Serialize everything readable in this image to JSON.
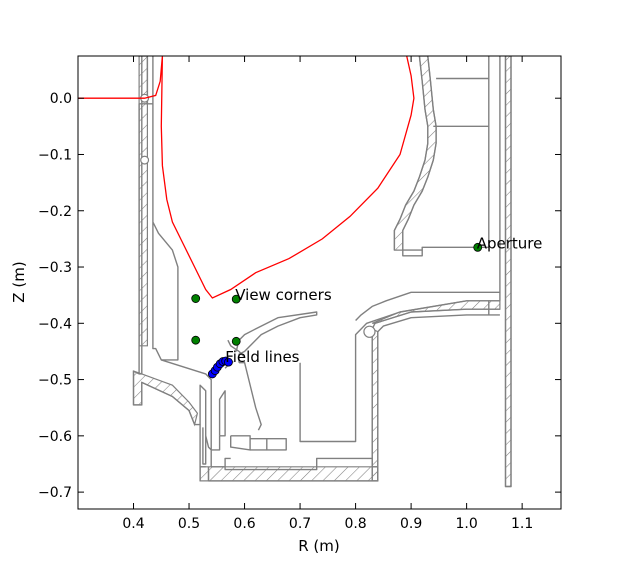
{
  "chart_data": {
    "type": "scatter",
    "title": "",
    "xlabel": "R (m)",
    "ylabel": "Z (m)",
    "xlim": [
      0.3,
      1.17
    ],
    "ylim": [
      -0.73,
      0.075
    ],
    "xticks": [
      0.4,
      0.5,
      0.6,
      0.7,
      0.8,
      0.9,
      1.0,
      1.1
    ],
    "xtick_labels": [
      "0.4",
      "0.5",
      "0.6",
      "0.7",
      "0.8",
      "0.9",
      "1.0",
      "1.1"
    ],
    "yticks": [
      0.0,
      -0.1,
      -0.2,
      -0.3,
      -0.4,
      -0.5,
      -0.6,
      -0.7
    ],
    "ytick_labels": [
      "0.0",
      "−0.1",
      "−0.2",
      "−0.3",
      "−0.4",
      "−0.5",
      "−0.6",
      "−0.7"
    ],
    "grid": false,
    "colors": {
      "separatrix": "#ff0000",
      "wall": "#808080",
      "view_corners": "#008000",
      "aperture": "#008000",
      "field_lines": "#0000ff"
    },
    "separatrix": [
      [
        0.3,
        0.0
      ],
      [
        0.42,
        0.0
      ],
      [
        0.44,
        0.005
      ],
      [
        0.448,
        0.03
      ],
      [
        0.452,
        0.075
      ],
      [
        0.45,
        -0.05
      ],
      [
        0.452,
        -0.12
      ],
      [
        0.46,
        -0.18
      ],
      [
        0.47,
        -0.22
      ],
      [
        0.49,
        -0.26
      ],
      [
        0.51,
        -0.3
      ],
      [
        0.53,
        -0.34
      ],
      [
        0.542,
        -0.355
      ],
      [
        0.575,
        -0.34
      ],
      [
        0.62,
        -0.31
      ],
      [
        0.68,
        -0.285
      ],
      [
        0.74,
        -0.25
      ],
      [
        0.79,
        -0.21
      ],
      [
        0.84,
        -0.16
      ],
      [
        0.88,
        -0.1
      ],
      [
        0.9,
        -0.03
      ],
      [
        0.905,
        0.0
      ],
      [
        0.9,
        0.04
      ],
      [
        0.892,
        0.075
      ]
    ],
    "view_corners": [
      [
        0.512,
        -0.356
      ],
      [
        0.585,
        -0.357
      ],
      [
        0.512,
        -0.43
      ],
      [
        0.585,
        -0.432
      ]
    ],
    "aperture": [
      [
        1.02,
        -0.265
      ]
    ],
    "field_lines": [
      [
        0.542,
        -0.49
      ],
      [
        0.547,
        -0.484
      ],
      [
        0.551,
        -0.478
      ],
      [
        0.556,
        -0.472
      ],
      [
        0.561,
        -0.468
      ],
      [
        0.566,
        -0.467
      ],
      [
        0.571,
        -0.469
      ]
    ],
    "annotations": [
      {
        "text": "View corners",
        "x": 0.585,
        "y": -0.357
      },
      {
        "text": "Field lines",
        "x": 0.567,
        "y": -0.467
      },
      {
        "text": "Aperture",
        "x": 1.02,
        "y": -0.265
      }
    ],
    "wall_outline": [
      [
        [
          0.425,
          0.075
        ],
        [
          0.425,
          -0.01
        ],
        [
          0.435,
          -0.01
        ],
        [
          0.435,
          -0.22
        ],
        [
          0.445,
          -0.24
        ],
        [
          0.47,
          -0.27
        ],
        [
          0.48,
          -0.3
        ],
        [
          0.48,
          -0.465
        ],
        [
          0.45,
          -0.465
        ],
        [
          0.44,
          -0.445
        ],
        [
          0.435,
          -0.445
        ],
        [
          0.435,
          0.075
        ]
      ],
      [
        [
          0.425,
          -0.01
        ],
        [
          0.41,
          -0.01
        ],
        [
          0.41,
          -0.49
        ],
        [
          0.415,
          -0.49
        ],
        [
          0.415,
          0.075
        ]
      ],
      [
        [
          0.41,
          -0.49
        ],
        [
          0.4,
          -0.485
        ],
        [
          0.4,
          -0.545
        ],
        [
          0.415,
          -0.545
        ],
        [
          0.415,
          -0.505
        ],
        [
          0.47,
          -0.53
        ],
        [
          0.5,
          -0.555
        ],
        [
          0.51,
          -0.58
        ],
        [
          0.52,
          -0.58
        ],
        [
          0.52,
          -0.51
        ],
        [
          0.53,
          -0.52
        ],
        [
          0.53,
          -0.6
        ],
        [
          0.535,
          -0.62
        ],
        [
          0.54,
          -0.625
        ],
        [
          0.54,
          -0.5
        ],
        [
          0.53,
          -0.49
        ],
        [
          0.45,
          -0.465
        ]
      ],
      [
        [
          0.53,
          -0.6
        ],
        [
          0.53,
          -0.65
        ],
        [
          0.525,
          -0.65
        ],
        [
          0.525,
          -0.585
        ]
      ],
      [
        [
          0.555,
          -0.6
        ],
        [
          0.555,
          -0.535
        ],
        [
          0.565,
          -0.52
        ],
        [
          0.565,
          -0.6
        ],
        [
          0.555,
          -0.6
        ]
      ],
      [
        [
          0.54,
          -0.625
        ],
        [
          0.555,
          -0.625
        ],
        [
          0.555,
          -0.6
        ]
      ],
      [
        [
          0.54,
          -0.625
        ],
        [
          0.54,
          -0.655
        ],
        [
          0.565,
          -0.655
        ]
      ],
      [
        [
          0.52,
          -0.58
        ],
        [
          0.52,
          -0.655
        ],
        [
          0.53,
          -0.655
        ]
      ],
      [
        [
          0.575,
          -0.6
        ],
        [
          0.575,
          -0.62
        ],
        [
          0.61,
          -0.625
        ],
        [
          0.61,
          -0.6
        ],
        [
          0.575,
          -0.6
        ]
      ],
      [
        [
          0.61,
          -0.605
        ],
        [
          0.64,
          -0.605
        ],
        [
          0.64,
          -0.625
        ],
        [
          0.61,
          -0.625
        ]
      ],
      [
        [
          0.64,
          -0.605
        ],
        [
          0.675,
          -0.605
        ],
        [
          0.675,
          -0.625
        ],
        [
          0.64,
          -0.625
        ]
      ],
      [
        [
          0.57,
          -0.43
        ],
        [
          0.575,
          -0.44
        ],
        [
          0.59,
          -0.45
        ],
        [
          0.6,
          -0.46
        ]
      ],
      [
        [
          0.565,
          -0.48
        ],
        [
          0.575,
          -0.47
        ],
        [
          0.58,
          -0.468
        ]
      ],
      [
        [
          0.535,
          -0.655
        ],
        [
          0.535,
          -0.68
        ],
        [
          0.84,
          -0.68
        ],
        [
          0.84,
          -0.655
        ],
        [
          0.83,
          -0.655
        ],
        [
          0.83,
          -0.64
        ],
        [
          0.73,
          -0.64
        ],
        [
          0.73,
          -0.66
        ],
        [
          0.565,
          -0.66
        ],
        [
          0.565,
          -0.64
        ],
        [
          0.575,
          -0.64
        ]
      ],
      [
        [
          0.52,
          -0.68
        ],
        [
          0.52,
          -0.655
        ]
      ],
      [
        [
          0.59,
          -0.47
        ],
        [
          0.6,
          -0.47
        ],
        [
          0.62,
          -0.55
        ],
        [
          0.63,
          -0.58
        ],
        [
          0.625,
          -0.59
        ]
      ],
      [
        [
          0.59,
          -0.47
        ],
        [
          0.59,
          -0.455
        ],
        [
          0.6,
          -0.45
        ],
        [
          0.615,
          -0.435
        ],
        [
          0.63,
          -0.42
        ],
        [
          0.66,
          -0.405
        ],
        [
          0.7,
          -0.39
        ],
        [
          0.73,
          -0.385
        ],
        [
          0.73,
          -0.38
        ],
        [
          0.66,
          -0.39
        ],
        [
          0.62,
          -0.41
        ],
        [
          0.6,
          -0.42
        ],
        [
          0.59,
          -0.43
        ],
        [
          0.585,
          -0.45
        ]
      ],
      [
        [
          0.7,
          -0.47
        ],
        [
          0.7,
          -0.61
        ],
        [
          0.8,
          -0.61
        ],
        [
          0.8,
          -0.42
        ],
        [
          0.82,
          -0.4
        ],
        [
          0.88,
          -0.38
        ],
        [
          1.0,
          -0.36
        ],
        [
          1.06,
          -0.36
        ],
        [
          1.06,
          -0.345
        ],
        [
          0.9,
          -0.345
        ],
        [
          0.855,
          -0.36
        ],
        [
          0.83,
          -0.37
        ],
        [
          0.81,
          -0.385
        ],
        [
          0.8,
          -0.395
        ]
      ],
      [
        [
          0.83,
          -0.68
        ],
        [
          0.83,
          -0.41
        ],
        [
          0.835,
          -0.4
        ],
        [
          0.9,
          -0.38
        ],
        [
          1.0,
          -0.375
        ],
        [
          1.06,
          -0.375
        ]
      ],
      [
        [
          0.84,
          -0.68
        ],
        [
          0.84,
          -0.415
        ],
        [
          0.85,
          -0.405
        ],
        [
          0.9,
          -0.39
        ],
        [
          1.0,
          -0.385
        ],
        [
          1.06,
          -0.385
        ]
      ],
      [
        [
          0.87,
          -0.27
        ],
        [
          0.87,
          -0.235
        ],
        [
          0.88,
          -0.215
        ],
        [
          0.89,
          -0.19
        ],
        [
          0.905,
          -0.165
        ],
        [
          0.915,
          -0.14
        ],
        [
          0.925,
          -0.11
        ],
        [
          0.93,
          -0.08
        ],
        [
          0.93,
          -0.05
        ],
        [
          0.925,
          -0.02
        ],
        [
          0.92,
          0.03
        ],
        [
          0.915,
          0.075
        ]
      ],
      [
        [
          0.885,
          -0.27
        ],
        [
          0.885,
          -0.235
        ],
        [
          0.895,
          -0.215
        ],
        [
          0.905,
          -0.19
        ],
        [
          0.92,
          -0.165
        ],
        [
          0.93,
          -0.14
        ],
        [
          0.94,
          -0.11
        ],
        [
          0.945,
          -0.08
        ],
        [
          0.945,
          -0.05
        ],
        [
          0.94,
          -0.02
        ],
        [
          0.935,
          0.03
        ],
        [
          0.93,
          0.075
        ]
      ],
      [
        [
          0.885,
          -0.27
        ],
        [
          0.92,
          -0.27
        ],
        [
          0.92,
          -0.265
        ],
        [
          1.04,
          -0.265
        ],
        [
          1.04,
          0.075
        ]
      ],
      [
        [
          0.94,
          -0.05
        ],
        [
          1.04,
          -0.05
        ]
      ],
      [
        [
          0.945,
          0.035
        ],
        [
          1.04,
          0.035
        ]
      ],
      [
        [
          1.07,
          0.075
        ],
        [
          1.07,
          -0.69
        ],
        [
          1.08,
          -0.69
        ],
        [
          1.08,
          0.075
        ]
      ],
      [
        [
          1.06,
          -0.345
        ],
        [
          1.06,
          0.075
        ]
      ],
      [
        [
          1.04,
          -0.36
        ],
        [
          1.04,
          -0.385
        ]
      ],
      [
        [
          0.92,
          -0.27
        ],
        [
          0.92,
          -0.28
        ],
        [
          0.885,
          -0.28
        ],
        [
          0.885,
          -0.27
        ]
      ]
    ],
    "hatched_regions": [
      [
        [
          0.41,
          0.075
        ],
        [
          0.425,
          0.075
        ],
        [
          0.425,
          -0.44
        ],
        [
          0.41,
          -0.44
        ]
      ],
      [
        [
          0.4,
          -0.485
        ],
        [
          0.415,
          -0.49
        ],
        [
          0.47,
          -0.51
        ],
        [
          0.5,
          -0.54
        ],
        [
          0.515,
          -0.56
        ],
        [
          0.51,
          -0.58
        ],
        [
          0.5,
          -0.555
        ],
        [
          0.47,
          -0.53
        ],
        [
          0.415,
          -0.505
        ],
        [
          0.415,
          -0.545
        ],
        [
          0.4,
          -0.545
        ]
      ],
      [
        [
          0.52,
          -0.655
        ],
        [
          0.535,
          -0.655
        ],
        [
          0.535,
          -0.68
        ],
        [
          0.84,
          -0.68
        ],
        [
          0.84,
          -0.655
        ],
        [
          0.535,
          -0.655
        ],
        [
          0.535,
          -0.68
        ],
        [
          0.52,
          -0.68
        ]
      ],
      [
        [
          0.83,
          -0.41
        ],
        [
          0.84,
          -0.415
        ],
        [
          0.84,
          -0.68
        ],
        [
          0.83,
          -0.68
        ]
      ],
      [
        [
          0.835,
          -0.4
        ],
        [
          0.9,
          -0.38
        ],
        [
          1.0,
          -0.375
        ],
        [
          1.06,
          -0.375
        ],
        [
          1.06,
          -0.36
        ],
        [
          1.0,
          -0.36
        ],
        [
          0.88,
          -0.38
        ],
        [
          0.83,
          -0.4
        ]
      ],
      [
        [
          1.07,
          0.075
        ],
        [
          1.08,
          0.075
        ],
        [
          1.08,
          -0.69
        ],
        [
          1.07,
          -0.69
        ]
      ],
      [
        [
          0.87,
          -0.27
        ],
        [
          0.885,
          -0.27
        ],
        [
          0.885,
          -0.235
        ],
        [
          0.895,
          -0.215
        ],
        [
          0.905,
          -0.19
        ],
        [
          0.92,
          -0.165
        ],
        [
          0.93,
          -0.14
        ],
        [
          0.94,
          -0.11
        ],
        [
          0.945,
          -0.08
        ],
        [
          0.945,
          -0.05
        ],
        [
          0.94,
          -0.02
        ],
        [
          0.935,
          0.03
        ],
        [
          0.93,
          0.075
        ],
        [
          0.915,
          0.075
        ],
        [
          0.92,
          0.03
        ],
        [
          0.925,
          -0.02
        ],
        [
          0.93,
          -0.05
        ],
        [
          0.93,
          -0.08
        ],
        [
          0.925,
          -0.11
        ],
        [
          0.915,
          -0.14
        ],
        [
          0.905,
          -0.165
        ],
        [
          0.89,
          -0.19
        ],
        [
          0.88,
          -0.215
        ],
        [
          0.87,
          -0.235
        ]
      ]
    ],
    "ports": [
      {
        "cx": 0.42,
        "cy": 0.0,
        "r": 0.007
      },
      {
        "cx": 0.42,
        "cy": -0.11,
        "r": 0.007
      },
      {
        "cx": 0.825,
        "cy": -0.415,
        "r": 0.01
      }
    ]
  }
}
